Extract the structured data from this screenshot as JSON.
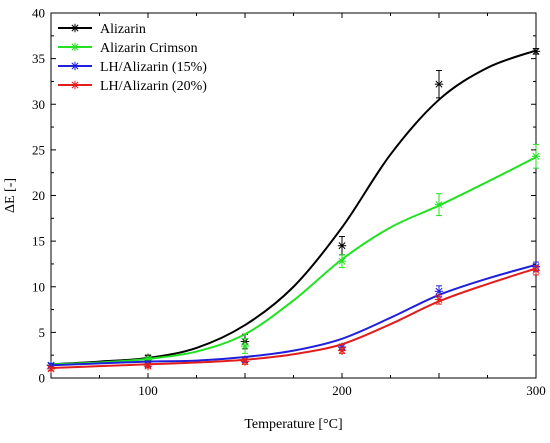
{
  "chart_data": {
    "type": "scatter",
    "title": "",
    "xlabel": "Temperature [°C]",
    "ylabel": "ΔE [-]",
    "xlim": [
      50,
      300
    ],
    "ylim": [
      0,
      40
    ],
    "xticks": [
      100,
      200,
      300
    ],
    "yticks": [
      0,
      5,
      10,
      15,
      20,
      25,
      30,
      35,
      40
    ],
    "grid": false,
    "legend_position": "top-left",
    "series": [
      {
        "name": "Alizarin",
        "color": "#000000",
        "points": [
          {
            "x": 50,
            "y": 1.4,
            "err": 0.2
          },
          {
            "x": 100,
            "y": 2.2,
            "err": 0.3
          },
          {
            "x": 150,
            "y": 4.0,
            "err": 0.8
          },
          {
            "x": 200,
            "y": 14.5,
            "err": 1.0
          },
          {
            "x": 250,
            "y": 32.2,
            "err": 1.5
          },
          {
            "x": 300,
            "y": 35.8,
            "err": 0.3
          }
        ],
        "fit": [
          [
            50,
            1.5
          ],
          [
            75,
            1.8
          ],
          [
            100,
            2.2
          ],
          [
            125,
            3.3
          ],
          [
            150,
            5.8
          ],
          [
            175,
            10.0
          ],
          [
            200,
            16.5
          ],
          [
            225,
            24.5
          ],
          [
            250,
            30.5
          ],
          [
            275,
            34.0
          ],
          [
            300,
            35.9
          ]
        ]
      },
      {
        "name": "Alizarin Crimson",
        "color": "#22e122",
        "points": [
          {
            "x": 50,
            "y": 1.4,
            "err": 0.2
          },
          {
            "x": 100,
            "y": 2.0,
            "err": 0.3
          },
          {
            "x": 150,
            "y": 3.5,
            "err": 0.8
          },
          {
            "x": 200,
            "y": 12.8,
            "err": 0.7
          },
          {
            "x": 250,
            "y": 19.0,
            "err": 1.2
          },
          {
            "x": 300,
            "y": 24.3,
            "err": 1.3
          }
        ],
        "fit": [
          [
            50,
            1.5
          ],
          [
            75,
            1.7
          ],
          [
            100,
            2.1
          ],
          [
            125,
            2.9
          ],
          [
            150,
            4.8
          ],
          [
            175,
            8.5
          ],
          [
            200,
            13.0
          ],
          [
            225,
            16.5
          ],
          [
            250,
            18.9
          ],
          [
            275,
            21.5
          ],
          [
            300,
            24.2
          ]
        ]
      },
      {
        "name": "LH/Alizarin (15%)",
        "color": "#1f1fdc",
        "points": [
          {
            "x": 50,
            "y": 1.4,
            "err": 0.2
          },
          {
            "x": 100,
            "y": 1.5,
            "err": 0.2
          },
          {
            "x": 150,
            "y": 2.0,
            "err": 0.3
          },
          {
            "x": 200,
            "y": 3.4,
            "err": 0.3
          },
          {
            "x": 250,
            "y": 9.5,
            "err": 0.6
          },
          {
            "x": 300,
            "y": 12.2,
            "err": 0.5
          }
        ],
        "fit": [
          [
            50,
            1.4
          ],
          [
            75,
            1.6
          ],
          [
            100,
            1.8
          ],
          [
            125,
            1.9
          ],
          [
            150,
            2.3
          ],
          [
            175,
            3.0
          ],
          [
            200,
            4.3
          ],
          [
            225,
            6.6
          ],
          [
            250,
            9.1
          ],
          [
            275,
            10.9
          ],
          [
            300,
            12.4
          ]
        ]
      },
      {
        "name": "LH/Alizarin (20%)",
        "color": "#e11e1e",
        "points": [
          {
            "x": 50,
            "y": 1.0,
            "err": 0.2
          },
          {
            "x": 100,
            "y": 1.3,
            "err": 0.2
          },
          {
            "x": 150,
            "y": 1.8,
            "err": 0.3
          },
          {
            "x": 200,
            "y": 3.0,
            "err": 0.3
          },
          {
            "x": 250,
            "y": 8.6,
            "err": 0.5
          },
          {
            "x": 300,
            "y": 11.8,
            "err": 0.5
          }
        ],
        "fit": [
          [
            50,
            1.1
          ],
          [
            75,
            1.3
          ],
          [
            100,
            1.5
          ],
          [
            125,
            1.7
          ],
          [
            150,
            2.0
          ],
          [
            175,
            2.6
          ],
          [
            200,
            3.7
          ],
          [
            225,
            5.9
          ],
          [
            250,
            8.4
          ],
          [
            275,
            10.3
          ],
          [
            300,
            12.0
          ]
        ]
      }
    ]
  }
}
